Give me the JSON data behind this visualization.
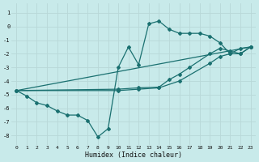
{
  "background_color": "#c8eaea",
  "grid_color": "#b8d8d8",
  "line_color": "#1a7070",
  "xlabel": "Humidex (Indice chaleur)",
  "xlim": [
    -0.5,
    23.5
  ],
  "ylim": [
    -8.7,
    1.7
  ],
  "yticks": [
    1,
    0,
    -1,
    -2,
    -3,
    -4,
    -5,
    -6,
    -7,
    -8
  ],
  "xticks": [
    0,
    1,
    2,
    3,
    4,
    5,
    6,
    7,
    8,
    9,
    10,
    11,
    12,
    13,
    14,
    15,
    16,
    17,
    18,
    19,
    20,
    21,
    22,
    23
  ],
  "line1_x": [
    0,
    1,
    2,
    3,
    4,
    5,
    6,
    7,
    8,
    9,
    10,
    11,
    12,
    13,
    14,
    15,
    16,
    17,
    18,
    19,
    20,
    21,
    22,
    23
  ],
  "line1_y": [
    -4.7,
    -5.1,
    -5.6,
    -5.8,
    -6.2,
    -6.5,
    -6.5,
    -6.9,
    -8.1,
    -7.5,
    -3.0,
    -1.5,
    -2.8,
    0.2,
    0.4,
    -0.2,
    -0.5,
    -0.5,
    -0.5,
    -0.7,
    -1.2,
    -2.0,
    -1.6,
    -1.5
  ],
  "line2_x": [
    0,
    10,
    12,
    14,
    15,
    16,
    17,
    19,
    20,
    21,
    22,
    23
  ],
  "line2_y": [
    -4.7,
    -4.6,
    -4.5,
    -4.45,
    -3.9,
    -3.5,
    -3.0,
    -2.0,
    -1.6,
    -1.8,
    -2.0,
    -1.5
  ],
  "line3_x": [
    0,
    10,
    12,
    14,
    16,
    19,
    20,
    21,
    22,
    23
  ],
  "line3_y": [
    -4.7,
    -4.7,
    -4.6,
    -4.5,
    -4.0,
    -2.7,
    -2.2,
    -2.0,
    -2.0,
    -1.5
  ],
  "line4_x": [
    0,
    23
  ],
  "line4_y": [
    -4.7,
    -1.5
  ]
}
